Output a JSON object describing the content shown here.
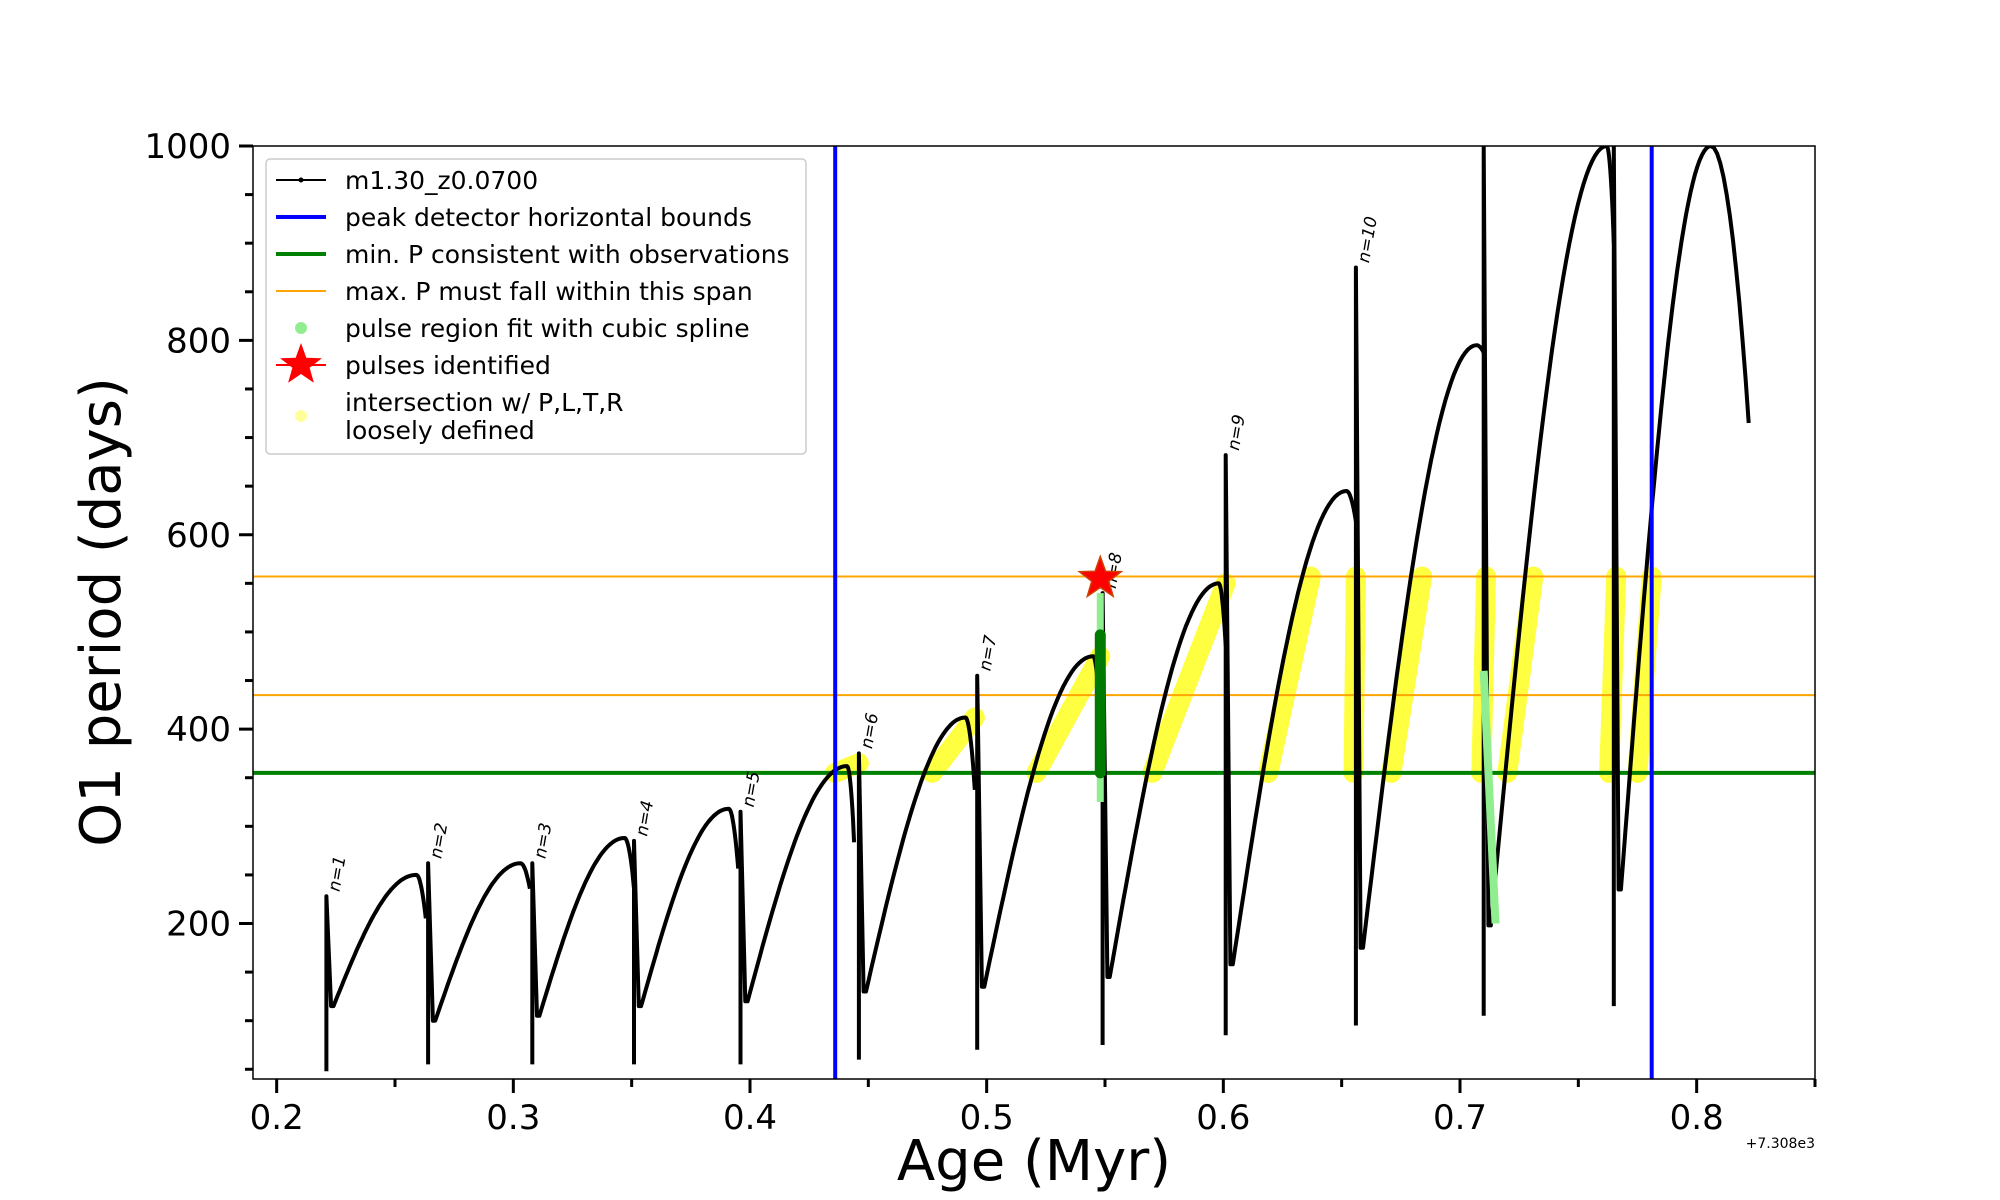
{
  "chart_data": {
    "type": "line",
    "xlabel": "Age (Myr)",
    "ylabel": "O1 period (days)",
    "x_offset_label": "+7.308e3",
    "xlim": [
      0.19,
      0.85
    ],
    "ylim": [
      40,
      1000
    ],
    "x_ticks": [
      0.2,
      0.3,
      0.4,
      0.5,
      0.6,
      0.7,
      0.8
    ],
    "x_tick_labels": [
      "0.2",
      "0.3",
      "0.4",
      "0.5",
      "0.6",
      "0.7",
      "0.8"
    ],
    "y_ticks": [
      200,
      400,
      600,
      800,
      1000
    ],
    "y_tick_labels": [
      "200",
      "400",
      "600",
      "800",
      "1000"
    ],
    "legend": {
      "placement": "top-left",
      "entries": [
        {
          "label": "m1.30_z0.0700",
          "color": "#000000",
          "marker": "line-dot"
        },
        {
          "label": "peak detector horizontal bounds",
          "color": "#0000ff",
          "marker": "line"
        },
        {
          "label": "min. P consistent with observations",
          "color": "#008000",
          "marker": "line"
        },
        {
          "label": "max. P must fall within this span",
          "color": "#ffa500",
          "marker": "thin-line"
        },
        {
          "label": "pulse region fit with cubic spline",
          "color": "#90ee90",
          "marker": "dot"
        },
        {
          "label": "pulses identified",
          "color": "#ff0000",
          "marker": "star"
        },
        {
          "label": "intersection w/ P,L,T,R",
          "label2": "loosely defined",
          "color": "#ffff99",
          "marker": "dot"
        }
      ]
    },
    "vertical_lines": {
      "color": "#0000ff",
      "x": [
        0.436,
        0.781
      ]
    },
    "min_p_line": {
      "color": "#008000",
      "y": 355
    },
    "max_p_span": {
      "color": "#ffa500",
      "y": [
        435,
        557
      ]
    },
    "pulse_star": {
      "color": "#ff0000",
      "x": 0.548,
      "y": 555
    },
    "pulses": [
      {
        "label": "n=1",
        "x": 0.221,
        "x_end": 0.263,
        "p_start": 115,
        "p_peak": 250,
        "x_peak": 0.259,
        "spike_top": 228,
        "spike_bottom": 48
      },
      {
        "label": "n=2",
        "x": 0.264,
        "x_end": 0.307,
        "p_start": 100,
        "p_peak": 262,
        "x_peak": 0.303,
        "spike_top": 262,
        "spike_bottom": 55
      },
      {
        "label": "n=3",
        "x": 0.308,
        "x_end": 0.351,
        "p_start": 105,
        "p_peak": 288,
        "x_peak": 0.347,
        "spike_top": 262,
        "spike_bottom": 55
      },
      {
        "label": "n=4",
        "x": 0.351,
        "x_end": 0.395,
        "p_start": 115,
        "p_peak": 318,
        "x_peak": 0.391,
        "spike_top": 285,
        "spike_bottom": 55
      },
      {
        "label": "n=5",
        "x": 0.396,
        "x_end": 0.444,
        "p_start": 120,
        "p_peak": 362,
        "x_peak": 0.441,
        "spike_top": 315,
        "spike_bottom": 55
      },
      {
        "label": "n=6",
        "x": 0.446,
        "x_end": 0.495,
        "p_start": 130,
        "p_peak": 412,
        "x_peak": 0.491,
        "spike_top": 375,
        "spike_bottom": 60
      },
      {
        "label": "n=7",
        "x": 0.496,
        "x_end": 0.548,
        "p_start": 135,
        "p_peak": 475,
        "x_peak": 0.545,
        "spike_top": 455,
        "spike_bottom": 70
      },
      {
        "label": "n=8",
        "x": 0.549,
        "x_end": 0.601,
        "p_start": 145,
        "p_peak": 550,
        "x_peak": 0.598,
        "spike_top": 540,
        "spike_bottom": 75
      },
      {
        "label": "n=9",
        "x": 0.601,
        "x_end": 0.656,
        "p_start": 158,
        "p_peak": 645,
        "x_peak": 0.652,
        "spike_top": 682,
        "spike_bottom": 85
      },
      {
        "label": "n=10",
        "x": 0.656,
        "x_end": 0.71,
        "p_start": 175,
        "p_peak": 795,
        "x_peak": 0.707,
        "spike_top": 875,
        "spike_bottom": 95
      },
      {
        "label": "",
        "x": 0.71,
        "x_end": 0.765,
        "p_start": 198,
        "p_peak": 1000,
        "x_peak": 0.762,
        "spike_top": 1000,
        "spike_bottom": 105
      },
      {
        "label": "",
        "x": 0.765,
        "x_end": 0.822,
        "p_start": 235,
        "p_peak": 1000,
        "x_peak": 0.806,
        "spike_top": 1000,
        "spike_bottom": 115,
        "p_end": 715
      }
    ],
    "spline_fit_region": {
      "x": 0.548,
      "y": [
        325,
        540
      ]
    },
    "spline_fit_region_2": {
      "x": [
        0.71,
        0.715
      ],
      "y": [
        200,
        460
      ]
    },
    "green_fit_segment": {
      "x": 0.548,
      "y": [
        355,
        497
      ]
    },
    "yellow_segments": [
      {
        "x": [
          0.436,
          0.446
        ],
        "y": [
          355,
          365
        ]
      },
      {
        "x": [
          0.477,
          0.495
        ],
        "y": [
          355,
          412
        ]
      },
      {
        "x": [
          0.521,
          0.548
        ],
        "y": [
          355,
          475
        ]
      },
      {
        "x": [
          0.57,
          0.601
        ],
        "y": [
          355,
          550
        ]
      },
      {
        "x": [
          0.619,
          0.637
        ],
        "y": [
          355,
          557
        ]
      },
      {
        "x": [
          0.655,
          0.656
        ],
        "y": [
          355,
          557
        ]
      },
      {
        "x": [
          0.671,
          0.684
        ],
        "y": [
          355,
          557
        ]
      },
      {
        "x": [
          0.709,
          0.711
        ],
        "y": [
          355,
          557
        ]
      },
      {
        "x": [
          0.72,
          0.731
        ],
        "y": [
          355,
          557
        ]
      },
      {
        "x": [
          0.763,
          0.766
        ],
        "y": [
          355,
          557
        ]
      },
      {
        "x": [
          0.775,
          0.781
        ],
        "y": [
          355,
          557
        ]
      }
    ]
  }
}
